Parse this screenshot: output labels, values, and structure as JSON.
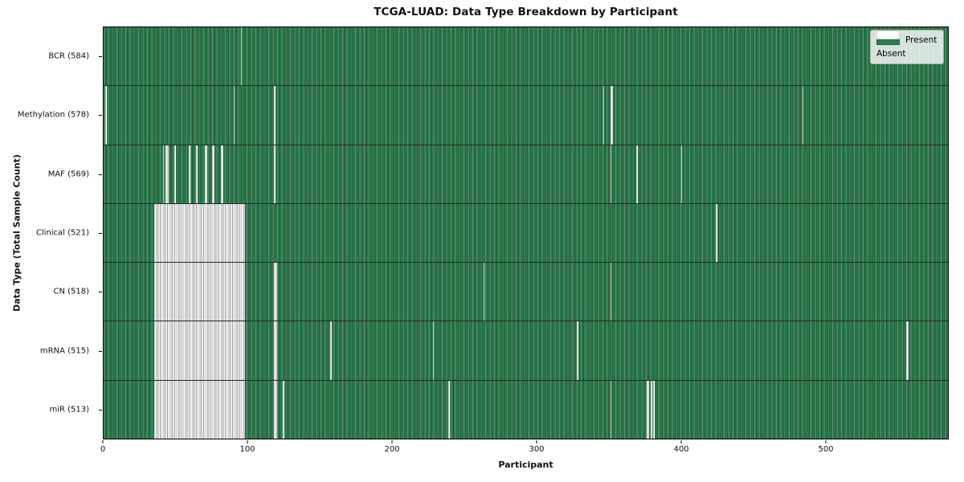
{
  "chart_data": {
    "type": "heatmap",
    "title": "TCGA-LUAD: Data Type Breakdown by Participant",
    "xlabel": "Participant",
    "ylabel": "Data Type (Total Sample Count)",
    "x_ticks": [
      0,
      100,
      200,
      300,
      400,
      500
    ],
    "x_max": 585,
    "grid": false,
    "legend_position": "upper-right-inside",
    "legend": [
      {
        "label": "Present",
        "color": "#2e7d4f"
      },
      {
        "label": "Absent",
        "color": "#ffffff"
      }
    ],
    "colors": {
      "present_fill": "#2e7d4f",
      "present_edge": "#1d5c38",
      "present_highlight": "#5d9f7c",
      "absent_fill": "#ffffff",
      "absent_edge": "#9c9c9c",
      "frame": "#000000",
      "background": "#ffffff"
    },
    "rows": [
      {
        "label": "BCR (584)",
        "data_type": "BCR",
        "present_count": 584,
        "absent_ranges": [
          [
            95,
            96
          ]
        ]
      },
      {
        "label": "Methylation (578)",
        "data_type": "Methylation",
        "present_count": 578,
        "absent_ranges": [
          [
            1,
            2
          ],
          [
            90,
            91
          ],
          [
            118,
            119
          ],
          [
            346,
            347
          ],
          [
            351,
            353
          ],
          [
            484,
            485
          ]
        ]
      },
      {
        "label": "MAF (569)",
        "data_type": "MAF",
        "present_count": 569,
        "absent_ranges": [
          [
            41,
            42
          ],
          [
            43,
            45
          ],
          [
            49,
            50
          ],
          [
            59,
            60
          ],
          [
            64,
            65
          ],
          [
            70,
            72
          ],
          [
            75,
            77
          ],
          [
            81,
            83
          ],
          [
            118,
            119
          ],
          [
            351,
            352
          ],
          [
            369,
            370
          ],
          [
            400,
            401
          ]
        ]
      },
      {
        "label": "Clinical (521)",
        "data_type": "Clinical",
        "present_count": 521,
        "absent_ranges": [
          [
            35,
            98
          ],
          [
            424,
            425
          ]
        ]
      },
      {
        "label": "CN (518)",
        "data_type": "CN",
        "present_count": 518,
        "absent_ranges": [
          [
            35,
            98
          ],
          [
            118,
            120
          ],
          [
            263,
            264
          ],
          [
            351,
            352
          ]
        ]
      },
      {
        "label": "mRNA (515)",
        "data_type": "mRNA",
        "present_count": 515,
        "absent_ranges": [
          [
            35,
            98
          ],
          [
            118,
            120
          ],
          [
            157,
            158
          ],
          [
            228,
            229
          ],
          [
            328,
            329
          ],
          [
            556,
            558
          ]
        ]
      },
      {
        "label": "miR (513)",
        "data_type": "miR",
        "present_count": 513,
        "absent_ranges": [
          [
            35,
            98
          ],
          [
            118,
            120
          ],
          [
            124,
            125
          ],
          [
            239,
            240
          ],
          [
            351,
            352
          ],
          [
            376,
            378
          ],
          [
            379,
            380
          ],
          [
            381,
            382
          ]
        ]
      }
    ]
  }
}
